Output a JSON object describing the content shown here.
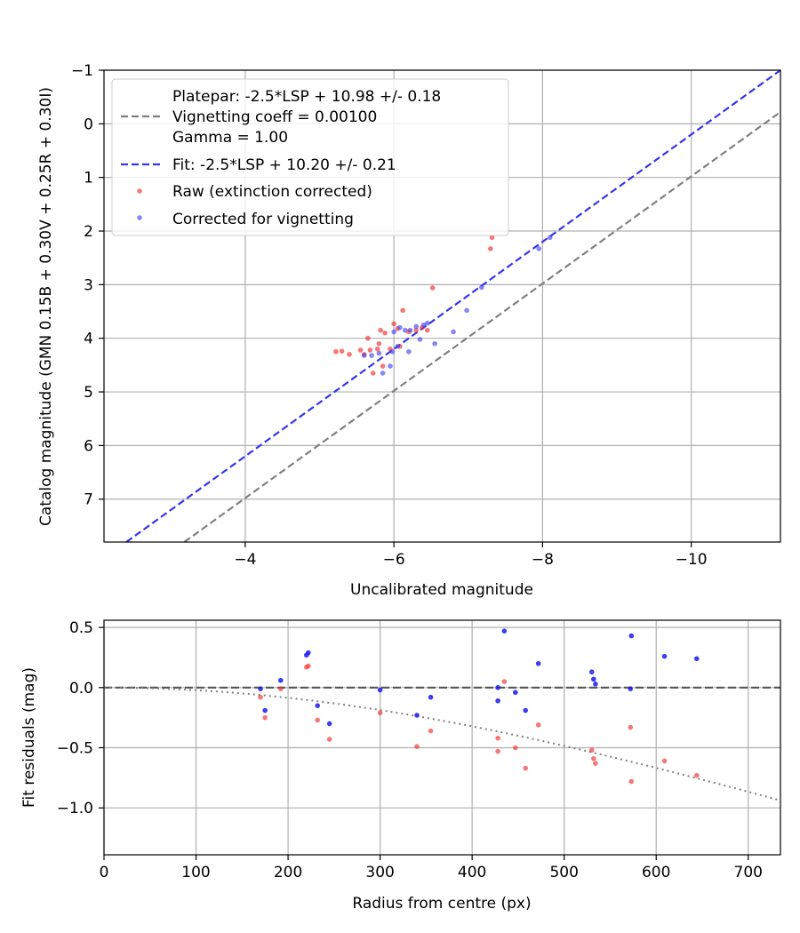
{
  "chart_data": [
    {
      "type": "scatter",
      "xlabel": "Uncalibrated magnitude",
      "ylabel": "Catalog magnitude (GMN 0.15B + 0.30V + 0.25R + 0.30I)",
      "xlim": [
        -2.1,
        -11.2
      ],
      "ylim": [
        7.8,
        -1.0
      ],
      "x_inverted": true,
      "y_inverted": true,
      "grid": true,
      "legend_position": "upper-left",
      "x_ticks": [
        -4,
        -6,
        -8,
        -10
      ],
      "x_tick_labels": [
        "−4",
        "−6",
        "−8",
        "−10"
      ],
      "y_ticks": [
        -1,
        0,
        1,
        2,
        3,
        4,
        5,
        6,
        7
      ],
      "y_tick_labels": [
        "−1",
        "0",
        "1",
        "2",
        "3",
        "4",
        "5",
        "6",
        "7"
      ],
      "legend": {
        "platepar_line1": "Platepar: -2.5*LSP + 10.98 +/- 0.18",
        "platepar_line2": "Vignetting coeff = 0.00100",
        "platepar_line3": "Gamma = 1.00",
        "fit": "Fit: -2.5*LSP + 10.20 +/- 0.21",
        "raw": "Raw (extinction corrected)",
        "corrected": "Corrected for vignetting"
      },
      "lines": [
        {
          "role": "platepar",
          "color": "#808080",
          "dash": true,
          "slope": 1.0,
          "intercept": 10.98
        },
        {
          "role": "fit",
          "color": "#3535ec",
          "dash": true,
          "slope": 1.0,
          "intercept": 10.2
        }
      ],
      "series": [
        {
          "role": "raw",
          "color": "#f03030",
          "points": [
            [
              -5.22,
              4.25
            ],
            [
              -5.3,
              4.24
            ],
            [
              -5.4,
              4.3
            ],
            [
              -5.55,
              4.22
            ],
            [
              -5.6,
              4.3
            ],
            [
              -5.65,
              4.0
            ],
            [
              -5.68,
              4.22
            ],
            [
              -5.72,
              4.65
            ],
            [
              -5.78,
              4.2
            ],
            [
              -5.8,
              4.1
            ],
            [
              -5.82,
              3.85
            ],
            [
              -5.85,
              4.52
            ],
            [
              -5.88,
              3.9
            ],
            [
              -5.95,
              4.2
            ],
            [
              -6.0,
              3.73
            ],
            [
              -6.05,
              3.82
            ],
            [
              -6.08,
              4.15
            ],
            [
              -6.12,
              3.48
            ],
            [
              -6.2,
              3.88
            ],
            [
              -6.3,
              3.85
            ],
            [
              -6.38,
              3.8
            ],
            [
              -6.45,
              3.85
            ],
            [
              -6.52,
              3.06
            ],
            [
              -7.3,
              2.33
            ],
            [
              -7.32,
              2.12
            ]
          ]
        },
        {
          "role": "corrected",
          "color": "#4545ee",
          "points": [
            [
              -5.6,
              4.32
            ],
            [
              -5.7,
              4.32
            ],
            [
              -5.8,
              4.28
            ],
            [
              -5.85,
              4.65
            ],
            [
              -5.95,
              4.52
            ],
            [
              -5.98,
              4.25
            ],
            [
              -6.0,
              3.88
            ],
            [
              -6.05,
              4.15
            ],
            [
              -6.08,
              3.8
            ],
            [
              -6.15,
              3.85
            ],
            [
              -6.2,
              4.25
            ],
            [
              -6.22,
              3.85
            ],
            [
              -6.3,
              3.78
            ],
            [
              -6.35,
              4.02
            ],
            [
              -6.4,
              3.75
            ],
            [
              -6.45,
              3.72
            ],
            [
              -6.55,
              4.1
            ],
            [
              -6.8,
              3.88
            ],
            [
              -6.98,
              3.48
            ],
            [
              -7.18,
              3.05
            ],
            [
              -7.95,
              2.33
            ],
            [
              -8.1,
              2.12
            ]
          ]
        }
      ]
    },
    {
      "type": "scatter",
      "xlabel": "Radius from centre (px)",
      "ylabel": "Fit residuals (mag)",
      "xlim": [
        0,
        735
      ],
      "ylim": [
        -1.39,
        0.56
      ],
      "grid": true,
      "x_ticks": [
        0,
        100,
        200,
        300,
        400,
        500,
        600,
        700
      ],
      "x_tick_labels": [
        "0",
        "100",
        "200",
        "300",
        "400",
        "500",
        "600",
        "700"
      ],
      "y_ticks": [
        0.5,
        0.0,
        -0.5,
        -1.0
      ],
      "y_tick_labels": [
        "0.5",
        "0.0",
        "−0.5",
        "−1.0"
      ],
      "lines": [
        {
          "role": "zero",
          "color": "#555555",
          "dash": true
        },
        {
          "role": "vignetting-model",
          "color": "#808080",
          "dotted": true,
          "coeff": 0.001
        }
      ],
      "series": [
        {
          "role": "raw",
          "color": "#f03030",
          "points": [
            [
              170,
              -0.08
            ],
            [
              175,
              -0.25
            ],
            [
              192,
              -0.01
            ],
            [
              220,
              0.17
            ],
            [
              222,
              0.18
            ],
            [
              232,
              -0.27
            ],
            [
              245,
              -0.43
            ],
            [
              300,
              -0.21
            ],
            [
              340,
              -0.49
            ],
            [
              355,
              -0.36
            ],
            [
              428,
              -0.42
            ],
            [
              428,
              -0.53
            ],
            [
              435,
              0.05
            ],
            [
              447,
              -0.5
            ],
            [
              458,
              -0.67
            ],
            [
              472,
              -0.31
            ],
            [
              530,
              -0.52
            ],
            [
              532,
              -0.59
            ],
            [
              534,
              -0.63
            ],
            [
              572,
              -0.33
            ],
            [
              573,
              -0.78
            ],
            [
              609,
              -0.61
            ],
            [
              644,
              -0.73
            ]
          ]
        },
        {
          "role": "corrected",
          "color": "#1a1aee",
          "points": [
            [
              170,
              -0.01
            ],
            [
              175,
              -0.19
            ],
            [
              192,
              0.06
            ],
            [
              220,
              0.27
            ],
            [
              222,
              0.29
            ],
            [
              232,
              -0.15
            ],
            [
              245,
              -0.3
            ],
            [
              300,
              -0.02
            ],
            [
              340,
              -0.23
            ],
            [
              355,
              -0.08
            ],
            [
              428,
              -0.11
            ],
            [
              428,
              0.0
            ],
            [
              435,
              0.47
            ],
            [
              447,
              -0.04
            ],
            [
              458,
              -0.19
            ],
            [
              472,
              0.2
            ],
            [
              530,
              0.13
            ],
            [
              532,
              0.07
            ],
            [
              534,
              0.03
            ],
            [
              572,
              -0.01
            ],
            [
              573,
              0.43
            ],
            [
              609,
              0.26
            ],
            [
              644,
              0.24
            ]
          ]
        }
      ]
    }
  ]
}
